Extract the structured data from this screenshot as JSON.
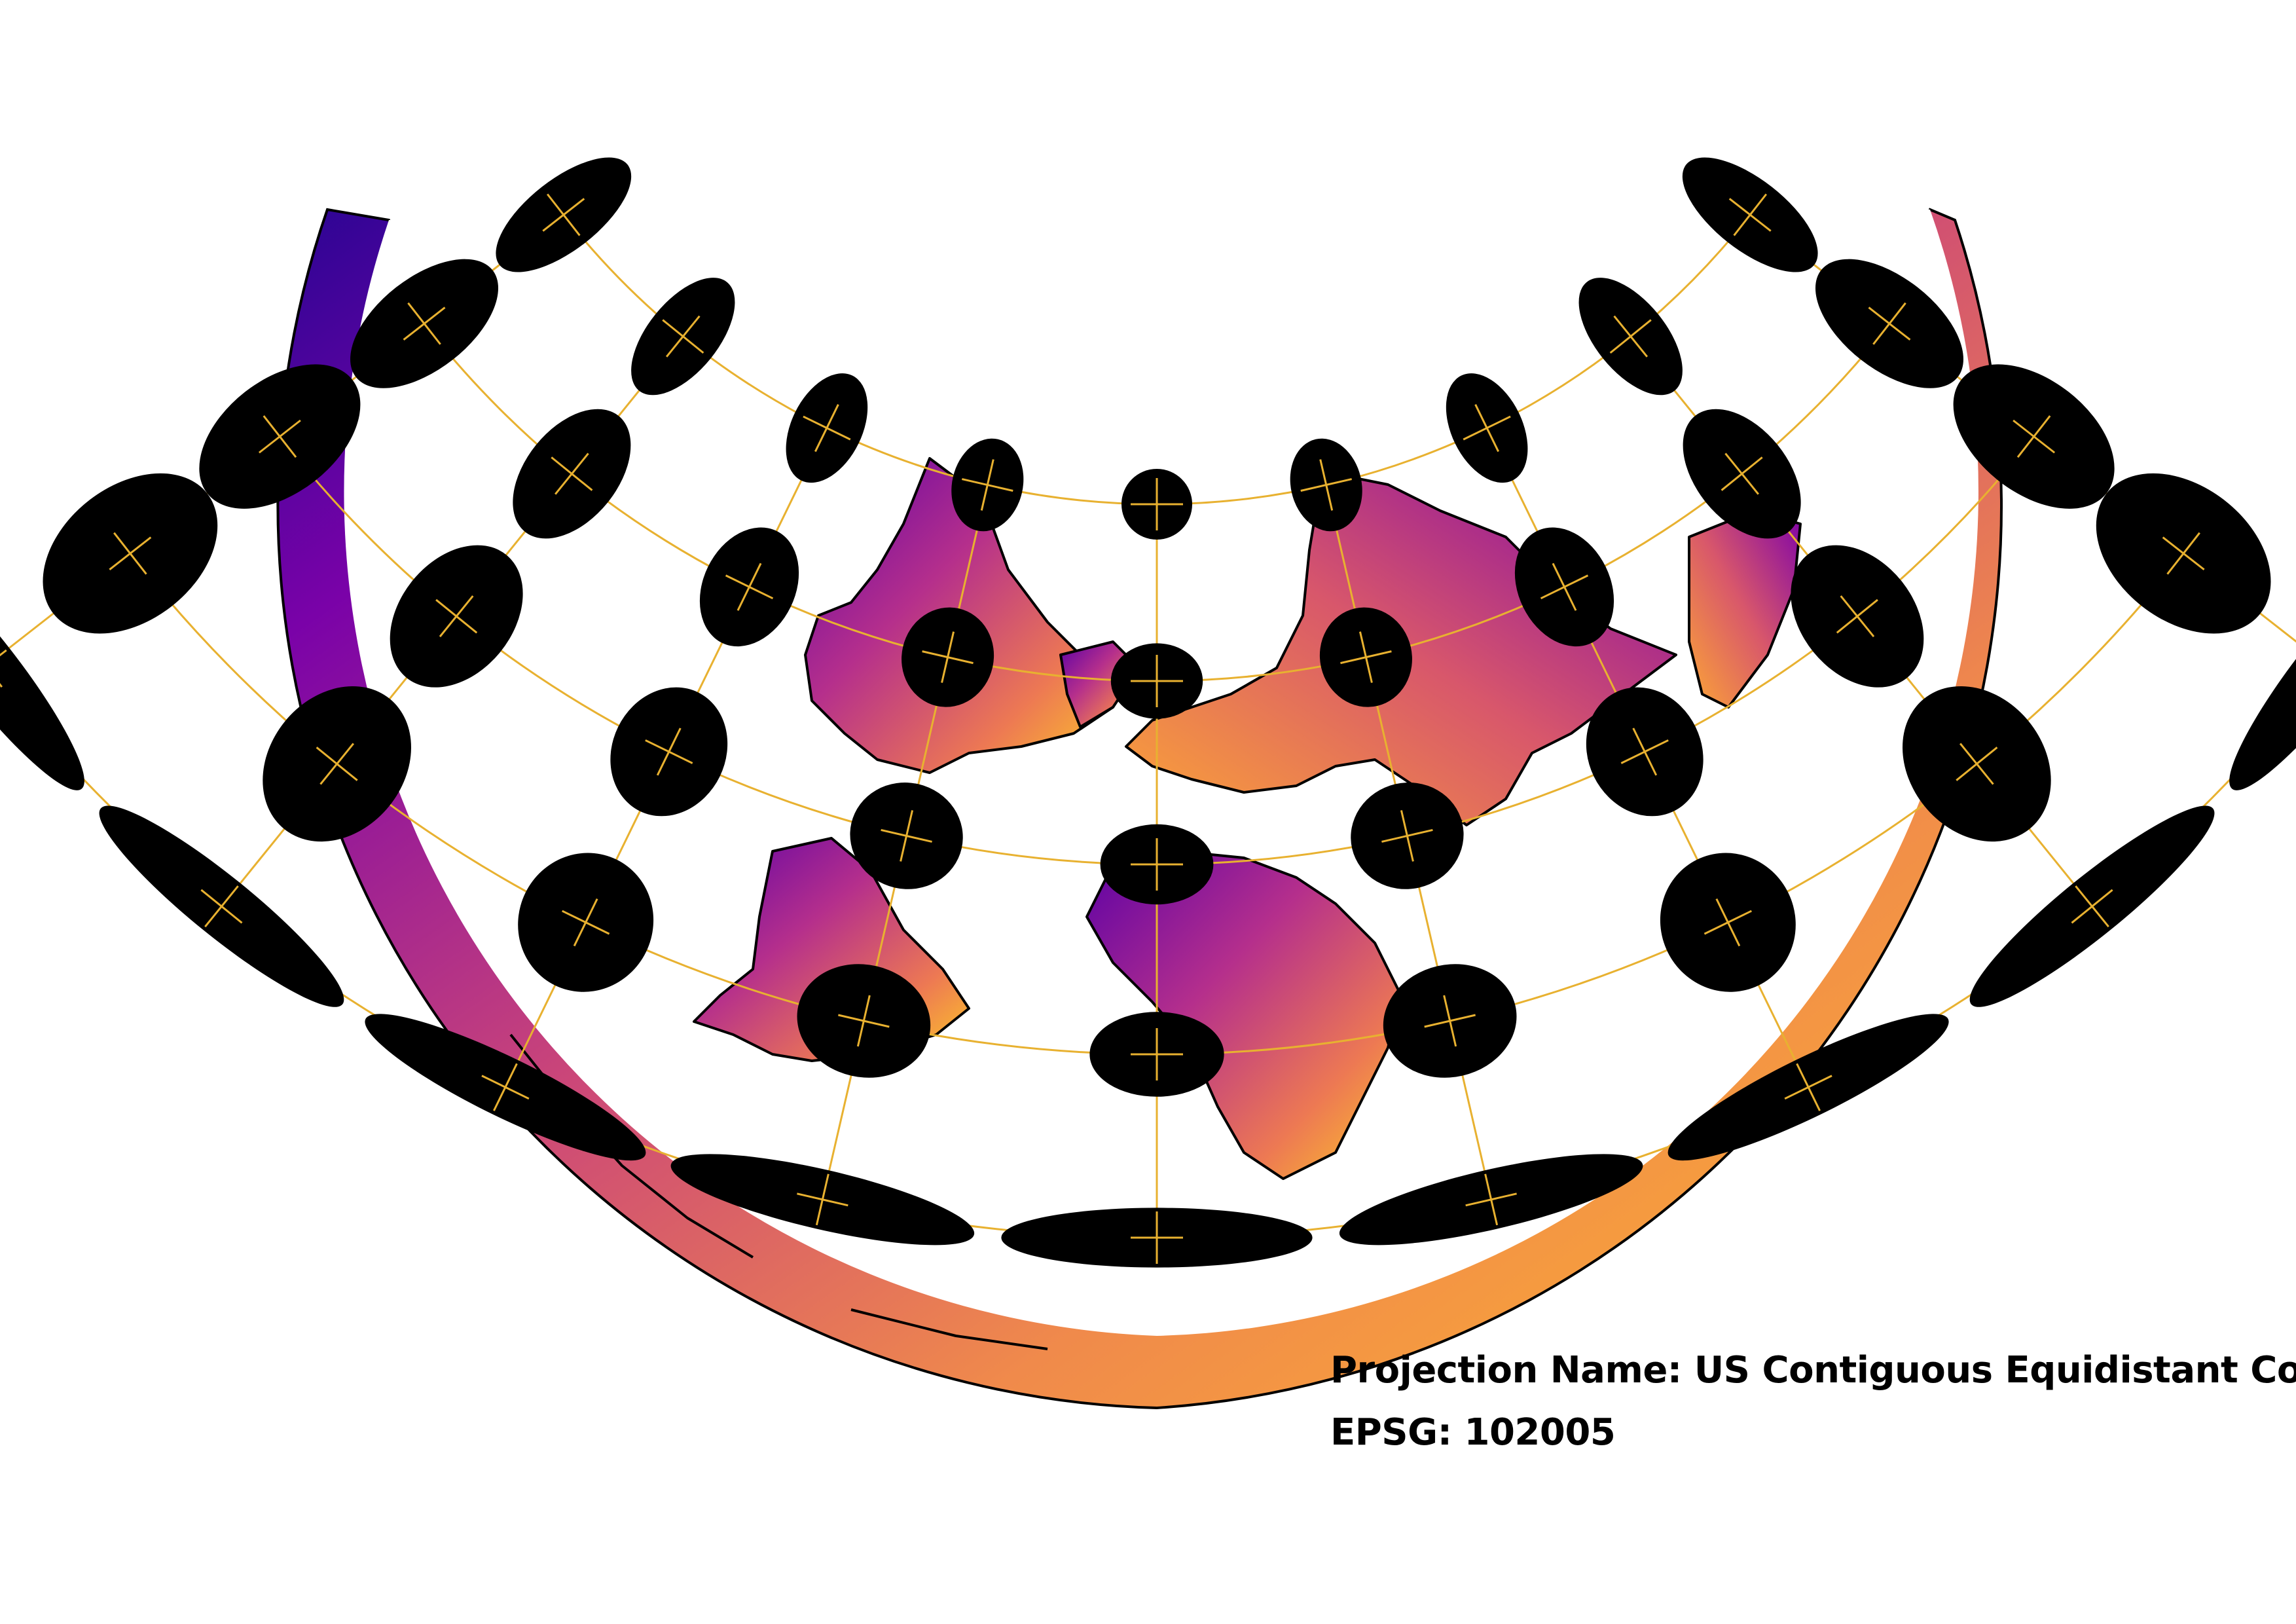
{
  "projection": {
    "name_label": "Projection Name",
    "name_value": "US Contiguous Equidistant Conic",
    "epsg_label": "EPSG",
    "epsg_value": "102005",
    "separator": ":"
  },
  "style": {
    "graticule_color": "#e8b130",
    "ellipse_color": "#000000",
    "outline_color": "#000000",
    "colormap": "plasma",
    "colormap_stops": [
      "#2a0593",
      "#6a00a8",
      "#b12a90",
      "#e16462",
      "#fca636",
      "#f0f921"
    ]
  }
}
